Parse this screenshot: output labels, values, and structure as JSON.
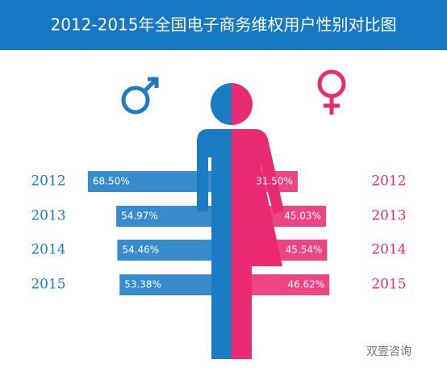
{
  "chart_data": {
    "type": "bar",
    "title": "2012-2015年全国电子商务维权用户性别对比图",
    "categories": [
      "2012",
      "2013",
      "2014",
      "2015"
    ],
    "series": [
      {
        "color": "#1b7cc6",
        "values": [
          68.5,
          54.97,
          54.46,
          53.38
        ],
        "value_labels": [
          "68.50%",
          "54.97%",
          "54.46%",
          "53.38%"
        ]
      },
      {
        "color": "#ea2a72",
        "values": [
          31.5,
          45.03,
          45.54,
          46.62
        ],
        "value_labels": [
          "31.50%",
          "45.03%",
          "45.54%",
          "46.62%"
        ]
      }
    ],
    "watermark": "双壹咨询"
  }
}
